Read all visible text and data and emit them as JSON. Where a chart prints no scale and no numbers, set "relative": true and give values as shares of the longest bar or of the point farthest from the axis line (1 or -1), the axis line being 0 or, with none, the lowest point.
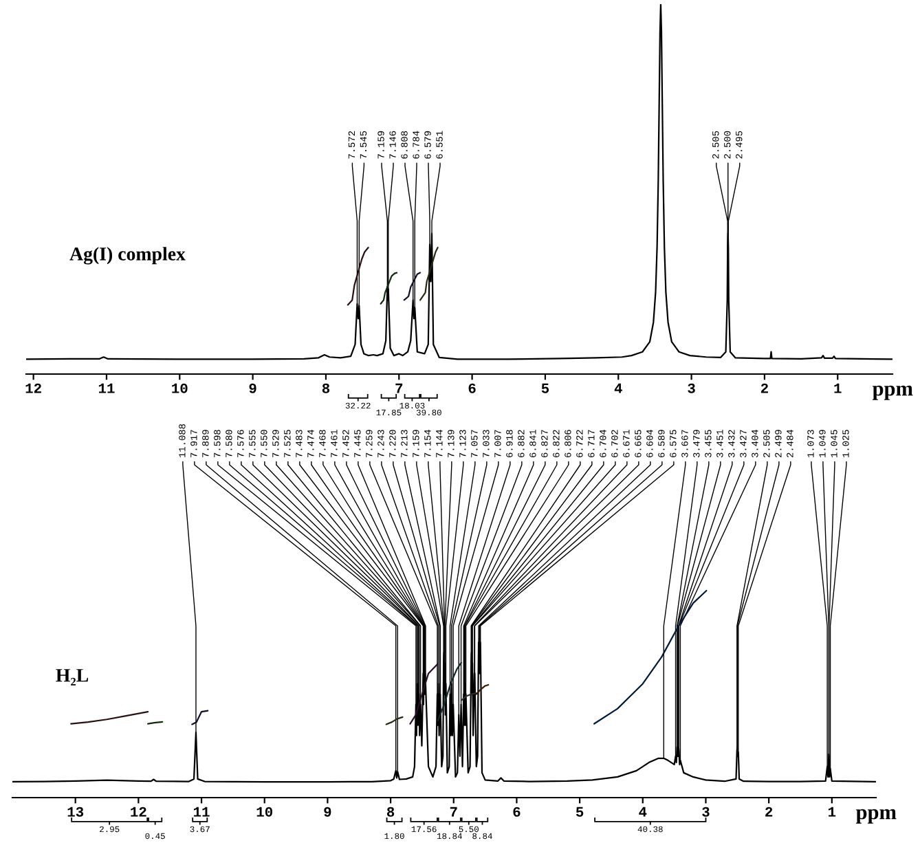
{
  "chart_data": [
    {
      "type": "line",
      "relative": true,
      "title": "Ag(I) complex",
      "xlim": [
        12.1,
        0.25
      ],
      "xticks": [
        12,
        11,
        10,
        9,
        8,
        7,
        6,
        5,
        4,
        3,
        2,
        1
      ],
      "xlabel": "ppm",
      "annotations": [
        {
          "text": "7.572",
          "x": 7.572,
          "y": 0.19
        },
        {
          "text": "7.545",
          "x": 7.545,
          "y": 0.185
        },
        {
          "text": "7.159",
          "x": 7.159,
          "y": 0.236
        },
        {
          "text": "7.146",
          "x": 7.146,
          "y": 0.23
        },
        {
          "text": "6.808",
          "x": 6.808,
          "y": 0.2
        },
        {
          "text": "6.784",
          "x": 6.784,
          "y": 0.18
        },
        {
          "text": "6.579",
          "x": 6.579,
          "y": 0.35
        },
        {
          "text": "6.551",
          "x": 6.551,
          "y": 0.38
        },
        {
          "text": "2.505",
          "x": 2.505,
          "y": 0.34
        },
        {
          "text": "2.500",
          "x": 2.5,
          "y": 0.38
        },
        {
          "text": "2.495",
          "x": 2.495,
          "y": 0.34
        },
        "32.22",
        "17.85",
        "18.03",
        "39.80"
      ],
      "series": [
        {
          "color": "#000000",
          "x": [
            12.1,
            11.5,
            11.1,
            11.04,
            10.98,
            10.0,
            9.0,
            8.3,
            8.1,
            8.02,
            7.95,
            7.8,
            7.66,
            7.6,
            7.572,
            7.558,
            7.545,
            7.52,
            7.48,
            7.42,
            7.35,
            7.3,
            7.22,
            7.18,
            7.159,
            7.152,
            7.146,
            7.12,
            7.07,
            7.0,
            6.95,
            6.88,
            6.84,
            6.808,
            6.796,
            6.784,
            6.75,
            6.65,
            6.6,
            6.579,
            6.565,
            6.551,
            6.53,
            6.45,
            6.2,
            5.5,
            4.8,
            4.3,
            3.95,
            3.82,
            3.67,
            3.57,
            3.52,
            3.49,
            3.47,
            3.454,
            3.44,
            3.43,
            3.42,
            3.41,
            3.4,
            3.386,
            3.37,
            3.35,
            3.32,
            3.27,
            3.17,
            3.02,
            2.8,
            2.6,
            2.53,
            2.51,
            2.505,
            2.5,
            2.495,
            2.49,
            2.47,
            2.4,
            2.0,
            1.92,
            1.91,
            1.9,
            1.5,
            1.22,
            1.2,
            1.18,
            1.07,
            1.05,
            1.03,
            0.25
          ],
          "values": [
            0.04,
            0.041,
            0.041,
            0.046,
            0.041,
            0.04,
            0.04,
            0.041,
            0.044,
            0.052,
            0.046,
            0.044,
            0.048,
            0.08,
            0.19,
            0.15,
            0.185,
            0.08,
            0.055,
            0.05,
            0.052,
            0.05,
            0.055,
            0.09,
            0.236,
            0.2,
            0.23,
            0.07,
            0.05,
            0.055,
            0.05,
            0.06,
            0.09,
            0.2,
            0.15,
            0.18,
            0.06,
            0.055,
            0.08,
            0.35,
            0.25,
            0.38,
            0.08,
            0.045,
            0.04,
            0.04,
            0.042,
            0.044,
            0.046,
            0.05,
            0.06,
            0.087,
            0.14,
            0.222,
            0.343,
            0.52,
            0.753,
            0.924,
            1.0,
            0.924,
            0.753,
            0.52,
            0.343,
            0.222,
            0.14,
            0.087,
            0.06,
            0.05,
            0.046,
            0.045,
            0.06,
            0.2,
            0.34,
            0.38,
            0.34,
            0.2,
            0.06,
            0.044,
            0.042,
            0.042,
            0.06,
            0.042,
            0.041,
            0.044,
            0.05,
            0.043,
            0.043,
            0.048,
            0.042,
            0.04
          ]
        },
        {
          "color": "#2a1010",
          "x": [
            7.7,
            7.64,
            7.61,
            7.51,
            7.47,
            7.42
          ],
          "values": [
            0.187,
            0.2,
            0.24,
            0.31,
            0.33,
            0.342
          ]
        },
        {
          "color": "#102a10",
          "x": [
            7.25,
            7.21,
            7.19,
            7.1,
            7.06,
            7.03
          ],
          "values": [
            0.19,
            0.2,
            0.22,
            0.265,
            0.272,
            0.274
          ]
        },
        {
          "color": "#10102a",
          "x": [
            6.93,
            6.87,
            6.84,
            6.75,
            6.71
          ],
          "values": [
            0.2,
            0.21,
            0.235,
            0.27,
            0.274
          ]
        },
        {
          "color": "#2a2a10",
          "x": [
            6.71,
            6.64,
            6.62,
            6.5,
            6.47
          ],
          "values": [
            0.2,
            0.22,
            0.25,
            0.33,
            0.342
          ]
        }
      ]
    },
    {
      "type": "line",
      "relative": true,
      "title": "H₂L",
      "xlim": [
        14.0,
        0.3
      ],
      "xticks": [
        13,
        12,
        11,
        10,
        9,
        8,
        7,
        6,
        5,
        4,
        3,
        2,
        1
      ],
      "xlabel": "ppm",
      "annotations": [
        {
          "text": "11.088",
          "x": 11.088,
          "y": 0.315
        },
        {
          "text": "7.917",
          "x": 7.917,
          "y": 0.13
        },
        {
          "text": "7.889",
          "x": 7.889,
          "y": 0.125
        },
        {
          "text": "7.598",
          "x": 7.598,
          "y": 0.45
        },
        {
          "text": "7.580",
          "x": 7.58,
          "y": 0.55
        },
        {
          "text": "7.576",
          "x": 7.576,
          "y": 0.55
        },
        {
          "text": "7.555",
          "x": 7.555,
          "y": 0.5
        },
        {
          "text": "7.550",
          "x": 7.55,
          "y": 0.5
        },
        {
          "text": "7.529",
          "x": 7.529,
          "y": 0.45
        },
        {
          "text": "7.525",
          "x": 7.525,
          "y": 0.45
        },
        {
          "text": "7.483",
          "x": 7.483,
          "y": 0.6
        },
        {
          "text": "7.474",
          "x": 7.474,
          "y": 0.65
        },
        {
          "text": "7.468",
          "x": 7.468,
          "y": 0.6
        },
        {
          "text": "7.461",
          "x": 7.461,
          "y": 0.7
        },
        {
          "text": "7.452",
          "x": 7.452,
          "y": 0.6
        },
        {
          "text": "7.445",
          "x": 7.445,
          "y": 0.55
        },
        {
          "text": "7.259",
          "x": 7.259,
          "y": 0.5
        },
        {
          "text": "7.243",
          "x": 7.243,
          "y": 0.55
        },
        {
          "text": "7.220",
          "x": 7.22,
          "y": 0.5
        },
        {
          "text": "7.213",
          "x": 7.213,
          "y": 0.5
        },
        {
          "text": "7.159",
          "x": 7.159,
          "y": 0.65
        },
        {
          "text": "7.154",
          "x": 7.154,
          "y": 0.7
        },
        {
          "text": "7.144",
          "x": 7.144,
          "y": 0.65
        },
        {
          "text": "7.139",
          "x": 7.139,
          "y": 0.6
        },
        {
          "text": "7.123",
          "x": 7.123,
          "y": 0.55
        },
        {
          "text": "7.057",
          "x": 7.057,
          "y": 0.5
        },
        {
          "text": "7.033",
          "x": 7.033,
          "y": 0.55
        },
        {
          "text": "7.007",
          "x": 7.007,
          "y": 0.45
        },
        {
          "text": "6.918",
          "x": 6.918,
          "y": 0.4
        },
        {
          "text": "6.882",
          "x": 6.882,
          "y": 0.45
        },
        {
          "text": "6.841",
          "x": 6.841,
          "y": 0.5
        },
        {
          "text": "6.827",
          "x": 6.827,
          "y": 0.55
        },
        {
          "text": "6.822",
          "x": 6.822,
          "y": 0.55
        },
        {
          "text": "6.806",
          "x": 6.806,
          "y": 0.5
        },
        {
          "text": "6.722",
          "x": 6.722,
          "y": 0.65
        },
        {
          "text": "6.717",
          "x": 6.717,
          "y": 0.7
        },
        {
          "text": "6.704",
          "x": 6.704,
          "y": 0.65
        },
        {
          "text": "6.702",
          "x": 6.702,
          "y": 0.65
        },
        {
          "text": "6.671",
          "x": 6.671,
          "y": 0.6
        },
        {
          "text": "6.665",
          "x": 6.665,
          "y": 0.6
        },
        {
          "text": "6.604",
          "x": 6.604,
          "y": 0.75
        },
        {
          "text": "6.589",
          "x": 6.589,
          "y": 0.77
        },
        {
          "text": "6.575",
          "x": 6.575,
          "y": 0.75
        },
        {
          "text": "3.667",
          "x": 3.667,
          "y": 0.19
        },
        {
          "text": "3.479",
          "x": 3.479,
          "y": 0.2
        },
        {
          "text": "3.455",
          "x": 3.455,
          "y": 0.245
        },
        {
          "text": "3.451",
          "x": 3.451,
          "y": 0.24
        },
        {
          "text": "3.432",
          "x": 3.432,
          "y": 0.24
        },
        {
          "text": "3.427",
          "x": 3.427,
          "y": 0.23
        },
        {
          "text": "3.404",
          "x": 3.404,
          "y": 0.18
        },
        {
          "text": "2.505",
          "x": 2.505,
          "y": 0.23
        },
        {
          "text": "2.499",
          "x": 2.499,
          "y": 0.245
        },
        {
          "text": "2.484",
          "x": 2.484,
          "y": 0.22
        },
        {
          "text": "1.073",
          "x": 1.073,
          "y": 0.15
        },
        {
          "text": "1.049",
          "x": 1.049,
          "y": 0.21
        },
        {
          "text": "1.045",
          "x": 1.045,
          "y": 0.2
        },
        {
          "text": "1.025",
          "x": 1.025,
          "y": 0.14
        },
        "2.95",
        "0.45",
        "3.67",
        "1.80",
        "17.56",
        "18.84",
        "5.50",
        "8.84",
        "40.38"
      ],
      "series": [
        {
          "color": "#000000",
          "x": [
            14.0,
            13.5,
            13.0,
            12.5,
            12.0,
            11.8,
            11.76,
            11.72,
            11.2,
            11.12,
            11.088,
            11.06,
            10.95,
            10.0,
            9.0,
            8.3,
            8.0,
            7.95,
            7.917,
            7.903,
            7.889,
            7.86,
            7.75,
            7.65,
            7.62,
            7.598,
            7.589,
            7.58,
            7.576,
            7.566,
            7.555,
            7.55,
            7.54,
            7.529,
            7.525,
            7.505,
            7.483,
            7.478,
            7.474,
            7.468,
            7.461,
            7.456,
            7.452,
            7.445,
            7.4,
            7.33,
            7.28,
            7.259,
            7.251,
            7.243,
            7.23,
            7.22,
            7.213,
            7.19,
            7.17,
            7.159,
            7.154,
            7.149,
            7.144,
            7.139,
            7.131,
            7.123,
            7.1,
            7.07,
            7.057,
            7.045,
            7.033,
            7.02,
            7.007,
            6.97,
            6.94,
            6.918,
            6.9,
            6.882,
            6.86,
            6.841,
            6.834,
            6.827,
            6.822,
            6.814,
            6.806,
            6.77,
            6.74,
            6.722,
            6.717,
            6.71,
            6.704,
            6.702,
            6.69,
            6.671,
            6.665,
            6.64,
            6.62,
            6.604,
            6.596,
            6.589,
            6.582,
            6.575,
            6.55,
            6.5,
            6.3,
            6.25,
            6.2,
            5.8,
            5.2,
            4.8,
            4.4,
            4.1,
            3.9,
            3.75,
            3.667,
            3.6,
            3.5,
            3.479,
            3.467,
            3.455,
            3.451,
            3.44,
            3.432,
            3.427,
            3.415,
            3.404,
            3.35,
            3.2,
            3.0,
            2.7,
            2.52,
            2.505,
            2.499,
            2.492,
            2.484,
            2.47,
            2.4,
            2.0,
            1.5,
            1.1,
            1.073,
            1.061,
            1.049,
            1.045,
            1.037,
            1.025,
            1.0,
            0.3
          ],
          "values": [
            0.077,
            0.078,
            0.08,
            0.084,
            0.08,
            0.079,
            0.088,
            0.079,
            0.078,
            0.09,
            0.315,
            0.09,
            0.078,
            0.076,
            0.076,
            0.077,
            0.082,
            0.09,
            0.13,
            0.095,
            0.125,
            0.088,
            0.09,
            0.1,
            0.15,
            0.45,
            0.3,
            0.55,
            0.55,
            0.35,
            0.5,
            0.5,
            0.3,
            0.45,
            0.45,
            0.25,
            0.6,
            0.45,
            0.65,
            0.6,
            0.7,
            0.5,
            0.6,
            0.55,
            0.15,
            0.1,
            0.15,
            0.5,
            0.35,
            0.55,
            0.3,
            0.5,
            0.5,
            0.15,
            0.2,
            0.65,
            0.7,
            0.5,
            0.65,
            0.6,
            0.4,
            0.55,
            0.12,
            0.15,
            0.5,
            0.3,
            0.55,
            0.3,
            0.45,
            0.1,
            0.12,
            0.4,
            0.2,
            0.45,
            0.15,
            0.5,
            0.35,
            0.55,
            0.55,
            0.35,
            0.5,
            0.12,
            0.15,
            0.65,
            0.7,
            0.5,
            0.65,
            0.65,
            0.3,
            0.6,
            0.6,
            0.15,
            0.2,
            0.75,
            0.6,
            0.77,
            0.6,
            0.75,
            0.12,
            0.085,
            0.08,
            0.095,
            0.08,
            0.078,
            0.08,
            0.085,
            0.1,
            0.13,
            0.17,
            0.19,
            0.19,
            0.18,
            0.16,
            0.2,
            0.17,
            0.245,
            0.24,
            0.2,
            0.24,
            0.23,
            0.16,
            0.18,
            0.12,
            0.1,
            0.085,
            0.079,
            0.09,
            0.23,
            0.245,
            0.2,
            0.22,
            0.09,
            0.079,
            0.078,
            0.078,
            0.08,
            0.15,
            0.1,
            0.21,
            0.2,
            0.1,
            0.14,
            0.08,
            0.077
          ]
        },
        {
          "color": "#2a1010",
          "x": [
            13.07,
            12.8,
            12.5,
            12.2,
            11.85
          ],
          "values": [
            0.357,
            0.365,
            0.378,
            0.395,
            0.415
          ]
        },
        {
          "color": "#102a10",
          "x": [
            11.85,
            11.75,
            11.62
          ],
          "values": [
            0.357,
            0.362,
            0.366
          ]
        },
        {
          "color": "#10102a",
          "x": [
            11.15,
            11.08,
            11.04,
            11.0,
            10.9
          ],
          "values": [
            0.354,
            0.365,
            0.39,
            0.415,
            0.42
          ]
        },
        {
          "color": "#2a2a10",
          "x": [
            8.07,
            7.98,
            7.9,
            7.81
          ],
          "values": [
            0.354,
            0.365,
            0.38,
            0.389
          ]
        },
        {
          "color": "#2a102a",
          "x": [
            7.69,
            7.6,
            7.5,
            7.4,
            7.25
          ],
          "values": [
            0.357,
            0.4,
            0.5,
            0.6,
            0.647
          ]
        },
        {
          "color": "#102a2a",
          "x": [
            7.25,
            7.15,
            7.05,
            6.95,
            6.88
          ],
          "values": [
            0.373,
            0.45,
            0.55,
            0.62,
            0.652
          ]
        },
        {
          "color": "#303030",
          "x": [
            6.88,
            6.8,
            6.72,
            6.64
          ],
          "values": [
            0.47,
            0.49,
            0.5,
            0.505
          ]
        },
        {
          "color": "#3a1a00",
          "x": [
            6.64,
            6.58,
            6.5,
            6.45
          ],
          "values": [
            0.5,
            0.52,
            0.54,
            0.545
          ]
        },
        {
          "color": "#001a3a",
          "x": [
            4.77,
            4.4,
            4.0,
            3.7,
            3.45,
            3.2,
            2.99
          ],
          "values": [
            0.357,
            0.43,
            0.55,
            0.68,
            0.82,
            0.94,
            1.0
          ]
        }
      ]
    }
  ]
}
